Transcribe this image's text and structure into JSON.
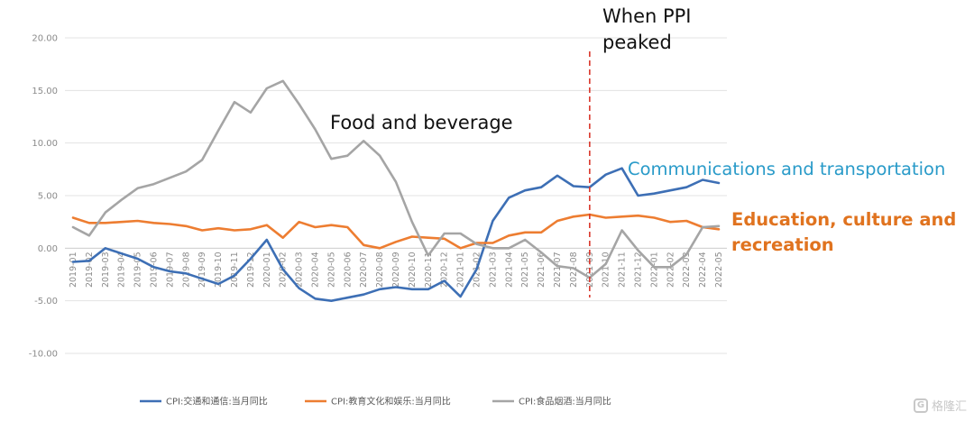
{
  "chart_data": {
    "type": "line",
    "ylim": [
      -10,
      20
    ],
    "yticks": [
      "20.00",
      "15.00",
      "10.00",
      "5.00",
      "0.00",
      "-5.00",
      "-10.00"
    ],
    "grid": "horizontal",
    "legend_position": "bottom",
    "categories": [
      "2019-01",
      "2019-02",
      "2019-03",
      "2019-04",
      "2019-05",
      "2019-06",
      "2019-07",
      "2019-08",
      "2019-09",
      "2019-10",
      "2019-11",
      "2019-12",
      "2020-01",
      "2020-02",
      "2020-03",
      "2020-04",
      "2020-05",
      "2020-06",
      "2020-07",
      "2020-08",
      "2020-09",
      "2020-10",
      "2020-11",
      "2020-12",
      "2021-01",
      "2021-02",
      "2021-03",
      "2021-04",
      "2021-05",
      "2021-06",
      "2021-07",
      "2021-08",
      "2021-09",
      "2021-10",
      "2021-11",
      "2021-12",
      "2022-01",
      "2022-02",
      "2022-03",
      "2022-04",
      "2022-05"
    ],
    "series": [
      {
        "name": "CPI:交通和通信:当月同比",
        "color": "#3d6fb5",
        "values": [
          -1.3,
          -1.2,
          0.0,
          -0.5,
          -1.0,
          -1.8,
          -2.2,
          -2.4,
          -2.9,
          -3.4,
          -2.6,
          -1.0,
          0.8,
          -2.0,
          -3.8,
          -4.8,
          -5.0,
          -4.7,
          -4.4,
          -3.9,
          -3.7,
          -3.9,
          -3.9,
          -3.1,
          -4.6,
          -2.0,
          2.6,
          4.8,
          5.5,
          5.8,
          6.9,
          5.9,
          5.8,
          7.0,
          7.6,
          5.0,
          5.2,
          5.5,
          5.8,
          6.5,
          6.2
        ]
      },
      {
        "name": "CPI:教育文化和娱乐:当月同比",
        "color": "#ed7d31",
        "values": [
          2.9,
          2.4,
          2.4,
          2.5,
          2.6,
          2.4,
          2.3,
          2.1,
          1.7,
          1.9,
          1.7,
          1.8,
          2.2,
          1.0,
          2.5,
          2.0,
          2.2,
          2.0,
          0.3,
          0.0,
          0.6,
          1.1,
          1.0,
          0.9,
          0.0,
          0.5,
          0.5,
          1.2,
          1.5,
          1.5,
          2.6,
          3.0,
          3.2,
          2.9,
          3.0,
          3.1,
          2.9,
          2.5,
          2.6,
          2.0,
          1.8
        ]
      },
      {
        "name": "CPI:食品烟酒:当月同比",
        "color": "#a5a5a5",
        "values": [
          2.0,
          1.2,
          3.4,
          4.6,
          5.7,
          6.1,
          6.7,
          7.3,
          8.4,
          11.2,
          13.9,
          12.9,
          15.2,
          15.9,
          13.7,
          11.3,
          8.5,
          8.8,
          10.2,
          8.8,
          6.3,
          2.5,
          -0.7,
          1.4,
          1.4,
          0.4,
          0.0,
          0.0,
          0.8,
          -0.4,
          -1.7,
          -1.9,
          -2.8,
          -1.5,
          1.7,
          -0.2,
          -1.8,
          -1.8,
          -0.6,
          2.0,
          2.1
        ]
      }
    ],
    "annotations": {
      "ppi_line": "When PPI\npeaked",
      "ppi_index": 32.5,
      "food": "Food and beverage",
      "comm": "Communications and transportation",
      "edu": "Education, culture and\nrecreation"
    }
  },
  "watermark": {
    "icon": "g-logo-icon",
    "text": "格隆汇"
  }
}
